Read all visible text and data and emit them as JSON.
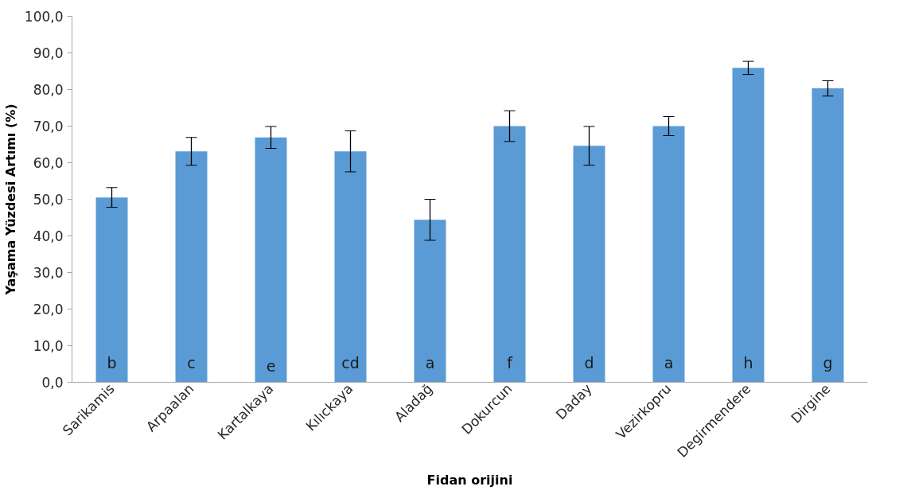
{
  "chart_data": {
    "type": "bar",
    "xlabel": "Fidan orijini",
    "ylabel": "Yaşama Yüzdesi Artımı (%)",
    "categories": [
      "Sarikamis",
      "Arpaalan",
      "Kartalkaya",
      "Kılıckaya",
      "Aladağ",
      "Dokurcun",
      "Daday",
      "Vezirkopru",
      "Degirmendere",
      "Dirgine"
    ],
    "values": [
      50.5,
      63.1,
      66.9,
      63.1,
      44.4,
      70.0,
      64.6,
      70.0,
      85.9,
      80.3
    ],
    "errors": [
      2.7,
      3.8,
      3.0,
      5.6,
      5.6,
      4.2,
      5.3,
      2.6,
      1.8,
      2.1
    ],
    "color": "#5b9bd5",
    "ylim": [
      0,
      100
    ],
    "yticks": [
      {
        "value": 0,
        "label": "0,0"
      },
      {
        "value": 10,
        "label": "10,0"
      },
      {
        "value": 20,
        "label": "20,0"
      },
      {
        "value": 30,
        "label": "30,0"
      },
      {
        "value": 40,
        "label": "40,0"
      },
      {
        "value": 50,
        "label": "50,0"
      },
      {
        "value": 60,
        "label": "60,0"
      },
      {
        "value": 70,
        "label": "70,0"
      },
      {
        "value": 80,
        "label": "80,0"
      },
      {
        "value": 90,
        "label": "90,0"
      },
      {
        "value": 100,
        "label": "100,0"
      }
    ],
    "annotations": [
      "b",
      "c",
      "e",
      "cd",
      "a",
      "f",
      "d",
      "a",
      "h",
      "g"
    ],
    "grid": false
  }
}
